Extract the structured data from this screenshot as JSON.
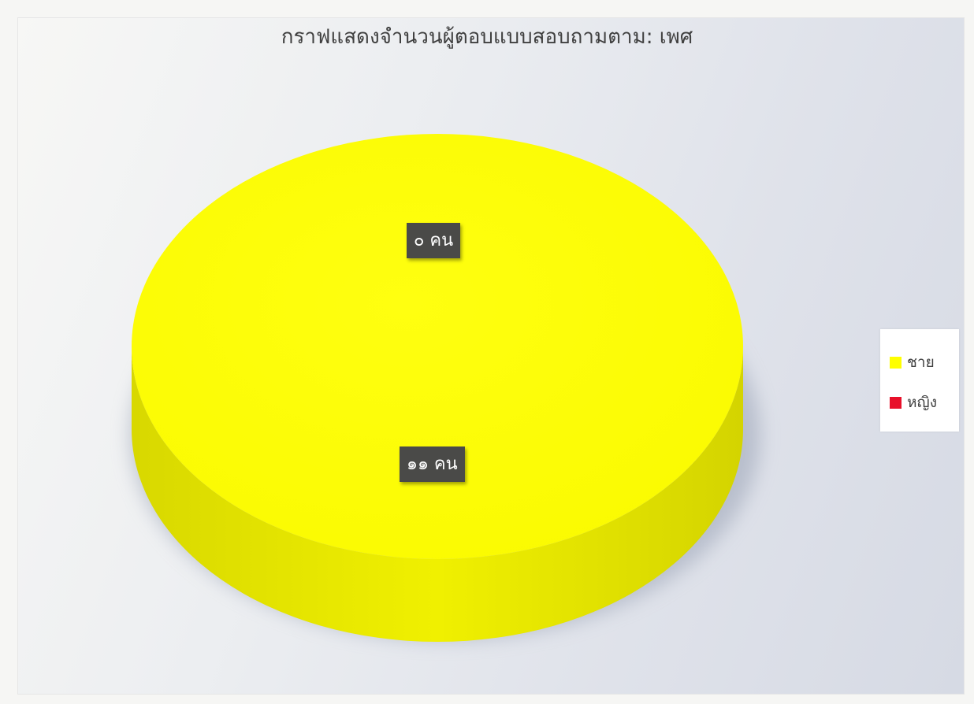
{
  "chart_data": {
    "type": "pie",
    "title": "กราฟแสดงจำนวนผู้ตอบแบบสอบถามตาม: เพศ",
    "categories": [
      "ชาย",
      "หญิง"
    ],
    "values": [
      11,
      0
    ],
    "data_labels": [
      "๑๑ คน",
      "๐ คน"
    ],
    "colors": [
      "#ffff00",
      "#e8102a"
    ],
    "style": "3d",
    "legend_position": "right"
  }
}
